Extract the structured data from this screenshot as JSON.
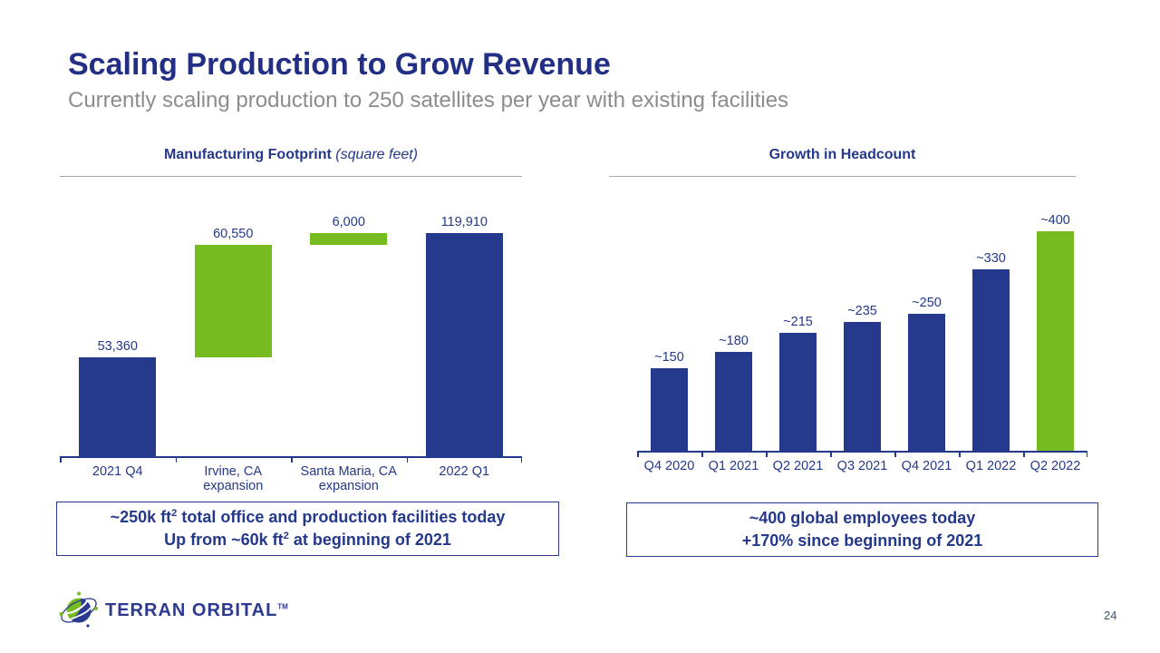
{
  "header": {
    "title": "Scaling Production to Grow Revenue",
    "subtitle": "Currently scaling production to 250 satellites per year with existing facilities"
  },
  "chart_data": [
    {
      "type": "waterfall",
      "title": "Manufacturing Footprint",
      "title_note": "(square feet)",
      "categories": [
        "2021 Q4",
        "Irvine, CA\nexpansion",
        "Santa Maria, CA\nexpansion",
        "2022 Q1"
      ],
      "bars": [
        {
          "category": "2021 Q4",
          "label": "53,360",
          "start": 0,
          "end": 53360,
          "color_key": "blue"
        },
        {
          "category": "Irvine, CA expansion",
          "label": "60,550",
          "start": 53360,
          "end": 113910,
          "color_key": "green"
        },
        {
          "category": "Santa Maria, CA expansion",
          "label": "6,000",
          "start": 113910,
          "end": 119910,
          "color_key": "green"
        },
        {
          "category": "2022 Q1",
          "label": "119,910",
          "start": 0,
          "end": 119910,
          "color_key": "blue"
        }
      ],
      "ylim": [
        0,
        122000
      ],
      "gridlines": false,
      "legend": "none"
    },
    {
      "type": "bar",
      "title": "Growth in Headcount",
      "title_note": "",
      "categories": [
        "Q4 2020",
        "Q1 2021",
        "Q2 2021",
        "Q3 2021",
        "Q4 2021",
        "Q1 2022",
        "Q2 2022"
      ],
      "values": [
        150,
        180,
        215,
        235,
        250,
        330,
        400
      ],
      "labels": [
        "~150",
        "~180",
        "~215",
        "~235",
        "~250",
        "~330",
        "~400"
      ],
      "colors": [
        "blue",
        "blue",
        "blue",
        "blue",
        "blue",
        "blue",
        "green"
      ],
      "ylim": [
        0,
        405
      ],
      "gridlines": false,
      "legend": "none"
    }
  ],
  "callouts": [
    {
      "line1": {
        "pre": "~250k ft",
        "sup": "2",
        "post": " total office and production facilities today"
      },
      "line2": {
        "pre": "Up from ~60k ft",
        "sup": "2",
        "post": " at beginning of 2021"
      }
    },
    {
      "line1": {
        "pre": "~400 global employees today",
        "sup": "",
        "post": ""
      },
      "line2": {
        "pre": "+170% since beginning of 2021",
        "sup": "",
        "post": ""
      }
    }
  ],
  "footer": {
    "brand": "TERRAN ORBITAL",
    "trademark": "TM",
    "page_number": "24"
  },
  "colors": {
    "navy": "#24388C",
    "green": "#76BC21",
    "title_navy": "#232F85",
    "subtitle_gray": "#8C8C8C",
    "rule_gray": "#A6A6A6",
    "page_gray": "#44546A"
  }
}
